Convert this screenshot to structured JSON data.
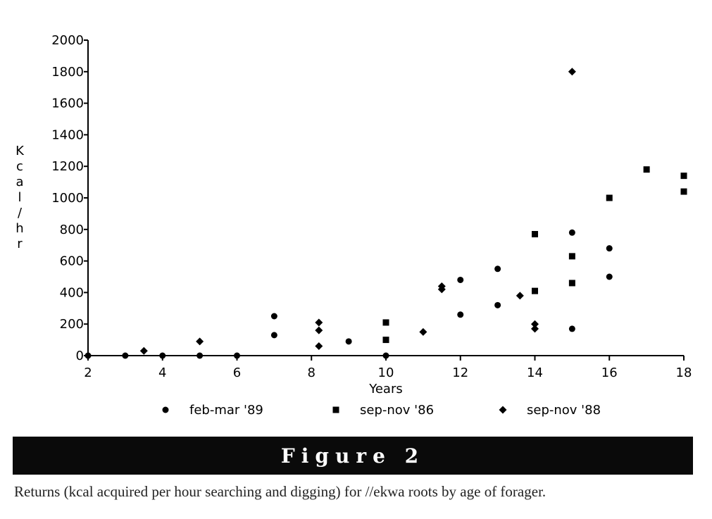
{
  "chart_data": {
    "type": "scatter",
    "xlabel": "Years",
    "ylabel": "Kcal/hr",
    "xlim": [
      2,
      18
    ],
    "ylim": [
      0,
      2000
    ],
    "xticks": [
      2,
      4,
      6,
      8,
      10,
      12,
      14,
      16,
      18
    ],
    "yticks": [
      0,
      200,
      400,
      600,
      800,
      1000,
      1200,
      1400,
      1600,
      1800,
      2000
    ],
    "grid": false,
    "legend_position": "bottom",
    "series": [
      {
        "name": "feb-mar '89",
        "marker": "circle",
        "points": [
          [
            2,
            0
          ],
          [
            3,
            0
          ],
          [
            4,
            0
          ],
          [
            5,
            0
          ],
          [
            6,
            0
          ],
          [
            7,
            250
          ],
          [
            7,
            130
          ],
          [
            9,
            90
          ],
          [
            10,
            0
          ],
          [
            12,
            480
          ],
          [
            12,
            260
          ],
          [
            13,
            550
          ],
          [
            13,
            320
          ],
          [
            15,
            780
          ],
          [
            15,
            170
          ],
          [
            16,
            680
          ],
          [
            16,
            500
          ]
        ]
      },
      {
        "name": "sep-nov '86",
        "marker": "square",
        "points": [
          [
            10,
            210
          ],
          [
            10,
            100
          ],
          [
            14,
            770
          ],
          [
            14,
            410
          ],
          [
            15,
            630
          ],
          [
            15,
            460
          ],
          [
            16,
            1000
          ],
          [
            17,
            1180
          ],
          [
            18,
            1140
          ],
          [
            18,
            1040
          ]
        ]
      },
      {
        "name": "sep-nov '88",
        "marker": "diamond",
        "points": [
          [
            3.5,
            30
          ],
          [
            5,
            90
          ],
          [
            8.2,
            210
          ],
          [
            8.2,
            160
          ],
          [
            8.2,
            60
          ],
          [
            11,
            150
          ],
          [
            11.5,
            440
          ],
          [
            11.5,
            420
          ],
          [
            13.6,
            380
          ],
          [
            14,
            200
          ],
          [
            14,
            170
          ],
          [
            15,
            1800
          ]
        ]
      }
    ]
  },
  "figure": {
    "label": "Figure 2",
    "caption": "Returns (kcal acquired per hour searching and digging) for //ekwa roots by age of forager."
  }
}
